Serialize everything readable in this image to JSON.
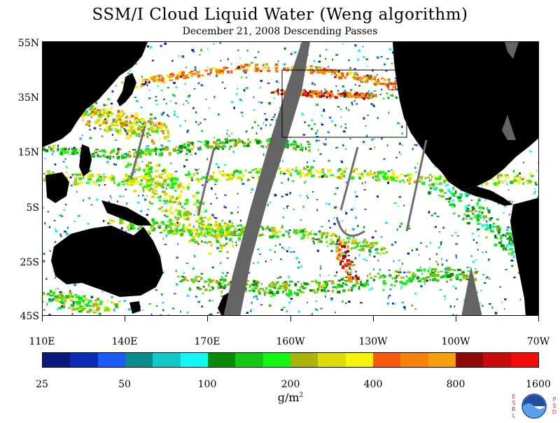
{
  "title": "SSM/I Cloud Liquid Water (Weng algorithm)",
  "subtitle": "December 21, 2008  Descending Passes",
  "lat_labels": [
    "55N",
    "35N",
    "15N",
    "5S",
    "25S",
    "45S"
  ],
  "lon_labels": [
    "110E",
    "140E",
    "170E",
    "160W",
    "130W",
    "100W",
    "70W"
  ],
  "colorbar": {
    "unit": "g/m",
    "unit_power": "2",
    "tick_labels": [
      "25",
      "50",
      "100",
      "200",
      "400",
      "800",
      "1600"
    ],
    "colors": [
      "#0a1a7a",
      "#0a2db4",
      "#1e5af5",
      "#0a8c8c",
      "#14c8c8",
      "#14f5f5",
      "#0a8c0a",
      "#14c814",
      "#14f514",
      "#aab40a",
      "#dcdc0a",
      "#f5f50a",
      "#f55a0a",
      "#f5820a",
      "#f5a00a",
      "#8c0a0a",
      "#c80a0a",
      "#f50a0a"
    ]
  },
  "map": {
    "land_color": "#000000",
    "no_data_color": "#646464",
    "background_color": "#ffffff"
  },
  "logo": {
    "name": "NOAA",
    "left_letters": [
      "E",
      "S",
      "R",
      "L"
    ],
    "right_letters": [
      "P",
      "S",
      "D"
    ]
  }
}
